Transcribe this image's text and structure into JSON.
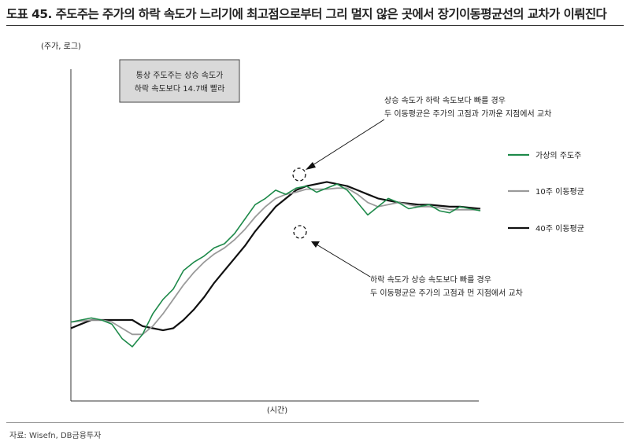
{
  "header": {
    "title": "도표 45. 주도주는 주가의 하락 속도가 느리기에 최고점으로부터 그리 멀지 않은 곳에서 장기이동평균선의 교차가 이뤄진다"
  },
  "footer": {
    "source": "자료: Wisefn, DB금융투자"
  },
  "chart_data": {
    "type": "line",
    "ylabel": "(주가, 로그)",
    "xlabel": "(시간)",
    "x": [
      0,
      5,
      10,
      15,
      20,
      25,
      30,
      35,
      40,
      45,
      50,
      55,
      60,
      65,
      70,
      75,
      80,
      85,
      90,
      95,
      100,
      105,
      110,
      115,
      120,
      125,
      130,
      135,
      140,
      145,
      150,
      155,
      160,
      165,
      170,
      175,
      180,
      185,
      190,
      195,
      200
    ],
    "series": [
      {
        "name": "가상의 주도주",
        "color": "#1e8a4a",
        "values": [
          20,
          21,
          22,
          21,
          19,
          12,
          8,
          14,
          24,
          31,
          36,
          45,
          49,
          52,
          56,
          58,
          63,
          70,
          77,
          80,
          84,
          82,
          85,
          86,
          83,
          85,
          87,
          84,
          78,
          72,
          76,
          80,
          78,
          75,
          76,
          77,
          74,
          73,
          76,
          75,
          74
        ]
      },
      {
        "name": "10주 이동평균",
        "color": "#9a9a9a",
        "values": [
          20,
          20.5,
          21,
          21,
          20,
          17,
          14,
          14,
          18,
          24,
          31,
          38,
          44,
          49,
          53,
          56,
          60,
          65,
          71,
          76,
          80,
          82,
          83,
          84.5,
          84.5,
          84.5,
          85,
          85,
          82,
          78,
          76,
          77,
          78,
          77,
          76,
          76,
          75.5,
          74.5,
          74.5,
          74.5,
          74.5
        ]
      },
      {
        "name": "40주 이동평균",
        "color": "#111111",
        "values": [
          17,
          19,
          21,
          21,
          21,
          21,
          21,
          18,
          17,
          16,
          17,
          21,
          26,
          32,
          39,
          45,
          51,
          57,
          64,
          70,
          76,
          80,
          84,
          86,
          87,
          88,
          87,
          86,
          84,
          82,
          80,
          79,
          78,
          77.5,
          77,
          77,
          76.5,
          76,
          76,
          75.5,
          75
        ]
      }
    ],
    "annotations": [
      {
        "text": "통상 주도주는 상승 속도가",
        "kind": "box"
      },
      {
        "text": "하락 속도보다 14.7배 빨라",
        "kind": "box"
      },
      {
        "text": "상승 속도가 하락 속도보다 빠를 경우",
        "kind": "note-top"
      },
      {
        "text": "두 이동평균은 주가의 고점과 가까운 지점에서 교차",
        "kind": "note-top"
      },
      {
        "text": "하락 속도가 상승 속도보다 빠를 경우",
        "kind": "note-bottom"
      },
      {
        "text": "두 이동평균은 주가의 고점과 먼 지점에서 교차",
        "kind": "note-bottom"
      }
    ],
    "legend_position": "right",
    "grid": false
  }
}
